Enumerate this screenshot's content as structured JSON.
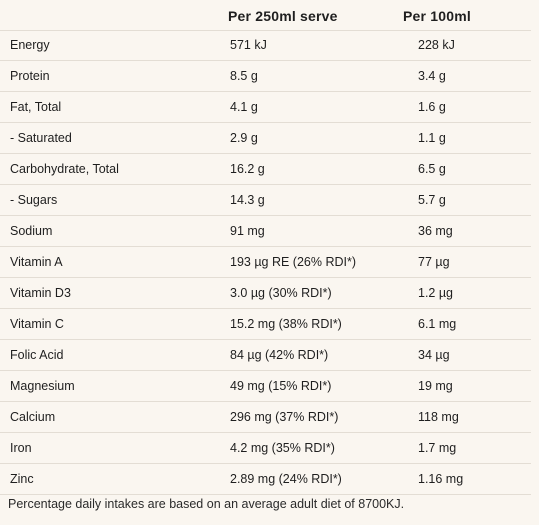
{
  "table": {
    "headers": [
      "",
      "Per 250ml serve",
      "Per 100ml"
    ],
    "rows": [
      {
        "nutrient": "Energy",
        "per_serve": "571 kJ",
        "per_100ml": "228 kJ"
      },
      {
        "nutrient": "Protein",
        "per_serve": "8.5 g",
        "per_100ml": "3.4 g"
      },
      {
        "nutrient": "Fat, Total",
        "per_serve": "4.1 g",
        "per_100ml": "1.6 g"
      },
      {
        "nutrient": "- Saturated",
        "per_serve": "2.9 g",
        "per_100ml": "1.1 g"
      },
      {
        "nutrient": "Carbohydrate, Total",
        "per_serve": "16.2 g",
        "per_100ml": "6.5 g"
      },
      {
        "nutrient": "- Sugars",
        "per_serve": "14.3 g",
        "per_100ml": "5.7 g"
      },
      {
        "nutrient": "Sodium",
        "per_serve": "91 mg",
        "per_100ml": "36 mg"
      },
      {
        "nutrient": "Vitamin A",
        "per_serve": "193 µg RE (26% RDI*)",
        "per_100ml": "77 µg"
      },
      {
        "nutrient": "Vitamin D3",
        "per_serve": "3.0 µg (30% RDI*)",
        "per_100ml": "1.2 µg"
      },
      {
        "nutrient": "Vitamin C",
        "per_serve": "15.2 mg (38% RDI*)",
        "per_100ml": "6.1 mg"
      },
      {
        "nutrient": "Folic Acid",
        "per_serve": "84 µg (42% RDI*)",
        "per_100ml": "34 µg"
      },
      {
        "nutrient": "Magnesium",
        "per_serve": "49 mg (15% RDI*)",
        "per_100ml": "19 mg"
      },
      {
        "nutrient": "Calcium",
        "per_serve": "296 mg (37% RDI*)",
        "per_100ml": "118 mg"
      },
      {
        "nutrient": "Iron",
        "per_serve": "4.2 mg (35% RDI*)",
        "per_100ml": "1.7 mg"
      },
      {
        "nutrient": "Zinc",
        "per_serve": "2.89 mg (24% RDI*)",
        "per_100ml": "1.16 mg"
      }
    ]
  },
  "footnote": "Percentage daily intakes are based on an average adult diet of 8700KJ."
}
